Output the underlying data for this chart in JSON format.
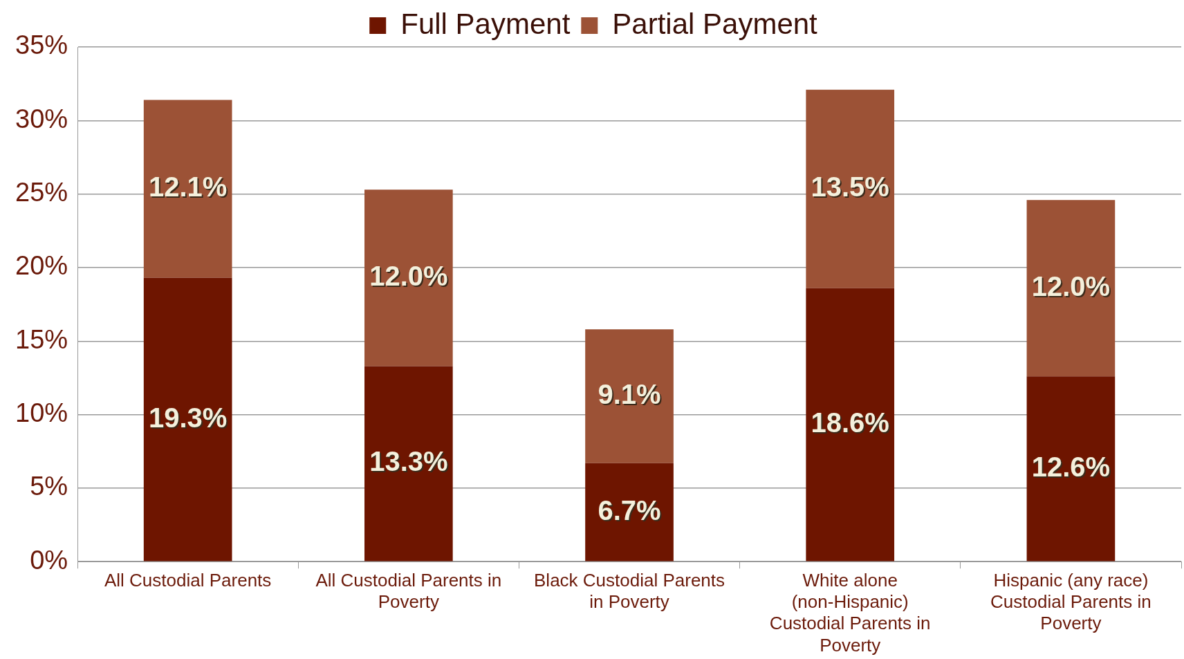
{
  "chart_data": {
    "type": "bar",
    "stacked": true,
    "categories": [
      "All Custodial Parents",
      "All Custodial Parents in Poverty",
      "Black Custodial Parents in Poverty",
      "White alone (non-Hispanic) Custodial Parents in Poverty",
      "Hispanic (any race) Custodial Parents in Poverty"
    ],
    "series": [
      {
        "name": "Full Payment",
        "color": "#6e1500",
        "values": [
          19.3,
          13.3,
          6.7,
          18.6,
          12.6
        ]
      },
      {
        "name": "Partial Payment",
        "color": "#9c5236",
        "values": [
          12.1,
          12.0,
          9.1,
          13.5,
          12.0
        ]
      }
    ],
    "ylim": [
      0,
      35
    ],
    "yticks": [
      {
        "value": 0,
        "label": "0%"
      },
      {
        "value": 5,
        "label": "5%"
      },
      {
        "value": 10,
        "label": "10%"
      },
      {
        "value": 15,
        "label": "15%"
      },
      {
        "value": 20,
        "label": "20%"
      },
      {
        "value": 25,
        "label": "25%"
      },
      {
        "value": 30,
        "label": "30%"
      },
      {
        "value": 35,
        "label": "35%"
      }
    ],
    "value_labels": [
      [
        "19.3%",
        "13.3%",
        "6.7%",
        "18.6%",
        "12.6%"
      ],
      [
        "12.1%",
        "12.0%",
        "9.1%",
        "13.5%",
        "12.0%"
      ]
    ],
    "grid": "y",
    "legend": "top"
  }
}
